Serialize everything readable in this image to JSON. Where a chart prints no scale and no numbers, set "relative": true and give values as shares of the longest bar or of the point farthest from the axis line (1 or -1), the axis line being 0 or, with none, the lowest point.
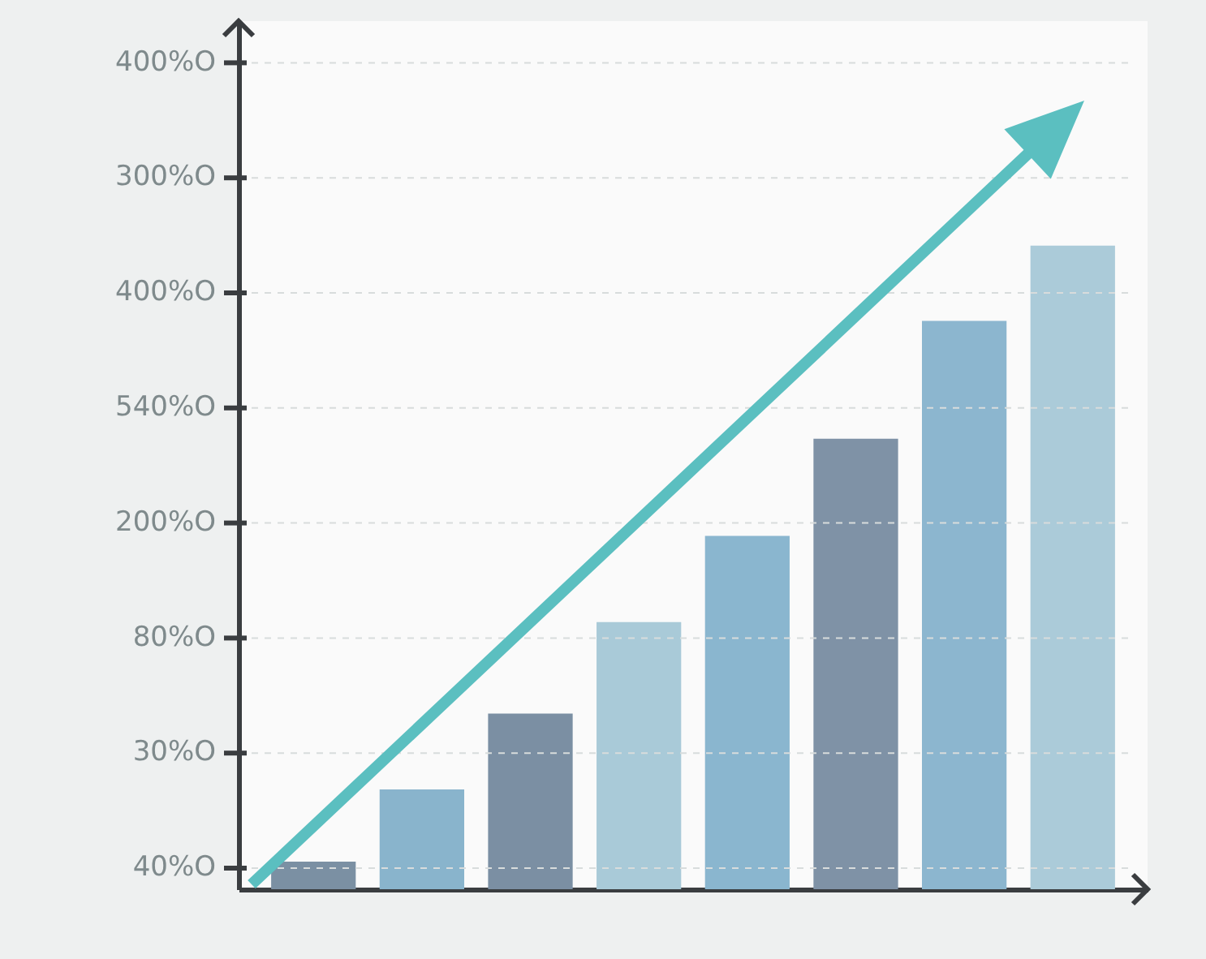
{
  "chart_data": {
    "type": "bar",
    "categories": [
      null,
      null,
      null,
      null,
      null,
      null,
      null,
      null
    ],
    "values": [
      0.043,
      0.155,
      0.273,
      0.415,
      0.549,
      0.7,
      0.883,
      1
    ],
    "colors": [
      "#7b90a3",
      "#89b4cc",
      "#7b8fa3",
      "#a9cad8",
      "#8ab6cf",
      "#7f92a6",
      "#8cb6cf",
      "#abcbd9"
    ],
    "relative": true,
    "annotations": [
      "400%O",
      "300%O",
      "400%O",
      "540%O",
      "200%O",
      "80%O",
      "30%O",
      "40%O"
    ],
    "grid": "y"
  }
}
